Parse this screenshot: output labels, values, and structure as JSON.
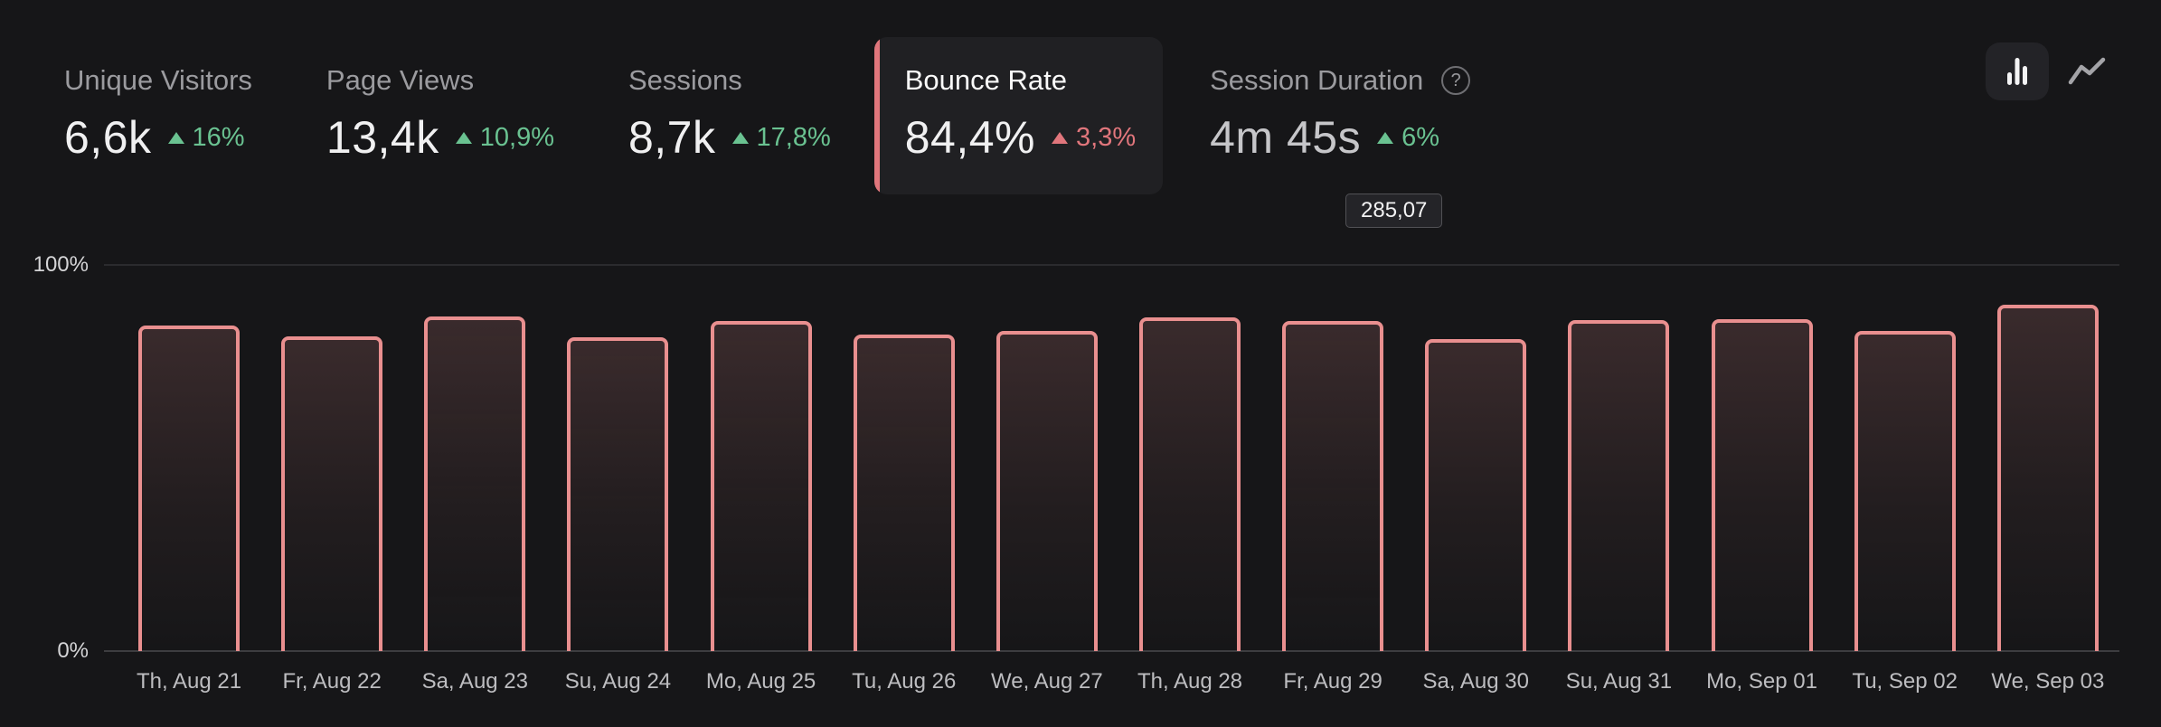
{
  "colors": {
    "background": "#161618",
    "active_tab_background": "#202023",
    "accent_salmon": "#e0767c",
    "bar_border": "#e98f8f",
    "positive_green": "#6ac291",
    "negative_red": "#e1767c",
    "tab_label_gray": "#9b9b9f",
    "axis_label": "#d4d4d6",
    "date_label": "#bdbdc0"
  },
  "tabs": [
    {
      "label": "Unique Visitors",
      "value": "6,6k",
      "delta": "16%",
      "trend": "up",
      "state": "inactive"
    },
    {
      "label": "Page Views",
      "value": "13,4k",
      "delta": "10,9%",
      "trend": "up",
      "state": "inactive"
    },
    {
      "label": "Sessions",
      "value": "8,7k",
      "delta": "17,8%",
      "trend": "up",
      "state": "inactive"
    },
    {
      "label": "Bounce Rate",
      "value": "84,4%",
      "delta": "3,3%",
      "trend": "up",
      "state": "active"
    },
    {
      "label": "Session Duration",
      "value": "4m 45s",
      "delta": "6%",
      "trend": "up",
      "state": "inactive",
      "help_icon": "question-mark-icon"
    }
  ],
  "tooltip": {
    "value": "285,07"
  },
  "view_toggle": {
    "options": [
      "bar-chart",
      "line-chart"
    ],
    "selected": "bar-chart"
  },
  "chart_data": {
    "type": "bar",
    "metric": "Bounce Rate",
    "unit": "%",
    "categories": [
      "Th, Aug 21",
      "Fr, Aug 22",
      "Sa, Aug 23",
      "Su, Aug 24",
      "Mo, Aug 25",
      "Tu, Aug 26",
      "We, Aug 27",
      "Th, Aug 28",
      "Fr, Aug 29",
      "Sa, Aug 30",
      "Su, Aug 31",
      "Mo, Sep 01",
      "Tu, Sep 02",
      "We, Sep 03"
    ],
    "values": [
      84.3,
      81.5,
      86.7,
      81.3,
      85.5,
      82.0,
      82.9,
      86.4,
      85.5,
      80.8,
      85.7,
      85.9,
      82.9,
      89.7
    ],
    "ylim": [
      0,
      100
    ],
    "y_ticks": [
      "0%",
      "100%"
    ],
    "grid": "top-and-baseline-only",
    "legend": "none"
  }
}
